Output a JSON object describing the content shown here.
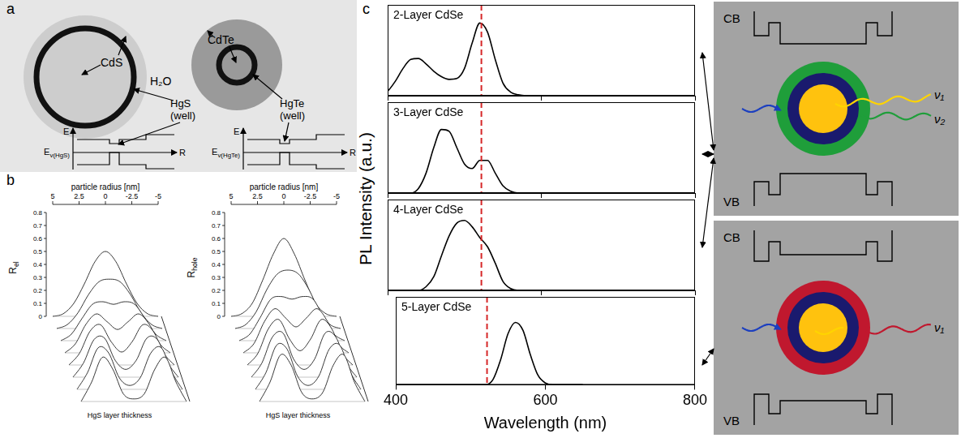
{
  "panel_labels": [
    "a",
    "b",
    "c"
  ],
  "panel_a": {
    "left_shell": "CdS",
    "right_shell": "CdTe",
    "medium": "H₂O",
    "left_well": [
      "HgS",
      "(well)"
    ],
    "right_well": [
      "HgTe",
      "(well)"
    ],
    "energy_axis": "E",
    "radius_axis": "R",
    "left_level": {
      "text": "E",
      "sub": "v(HgS)"
    },
    "right_level": {
      "text": "E",
      "sub": "v(HgTe)"
    }
  },
  "panel_b": {
    "radius_label": "particle radius [nm]",
    "radius_ticks": [
      5,
      2.5,
      0,
      -2.5,
      -5
    ],
    "z_ticks": [
      0,
      0.1,
      0.2,
      0.3,
      0.4,
      0.5,
      0.6,
      0.7,
      0.8
    ],
    "thickness_label": "HgS layer thickness",
    "r": [
      -5,
      -4,
      -3,
      -2,
      -1,
      0,
      1,
      2,
      3,
      4,
      5
    ],
    "plots": [
      {
        "zlabel": {
          "text": "R",
          "sub": "el"
        },
        "curves": [
          [
            0,
            0.02,
            0.1,
            0.25,
            0.42,
            0.5,
            0.42,
            0.25,
            0.1,
            0.02,
            0
          ],
          [
            0,
            0.03,
            0.12,
            0.26,
            0.36,
            0.38,
            0.36,
            0.26,
            0.12,
            0.03,
            0
          ],
          [
            0,
            0.05,
            0.17,
            0.28,
            0.3,
            0.28,
            0.3,
            0.28,
            0.17,
            0.05,
            0
          ],
          [
            0,
            0.07,
            0.22,
            0.3,
            0.24,
            0.18,
            0.24,
            0.3,
            0.22,
            0.07,
            0
          ],
          [
            0,
            0.09,
            0.26,
            0.31,
            0.18,
            0.1,
            0.18,
            0.31,
            0.26,
            0.09,
            0
          ],
          [
            0,
            0.11,
            0.29,
            0.3,
            0.13,
            0.06,
            0.13,
            0.3,
            0.29,
            0.11,
            0
          ],
          [
            0,
            0.13,
            0.32,
            0.28,
            0.09,
            0.03,
            0.09,
            0.28,
            0.32,
            0.13,
            0
          ],
          [
            0,
            0.15,
            0.34,
            0.25,
            0.06,
            0.02,
            0.06,
            0.25,
            0.34,
            0.15,
            0
          ]
        ]
      },
      {
        "zlabel": {
          "text": "R",
          "sub": "hole"
        },
        "curves": [
          [
            0,
            0.02,
            0.1,
            0.28,
            0.48,
            0.6,
            0.48,
            0.28,
            0.1,
            0.02,
            0
          ],
          [
            0,
            0.03,
            0.13,
            0.3,
            0.42,
            0.45,
            0.42,
            0.3,
            0.13,
            0.03,
            0
          ],
          [
            0,
            0.05,
            0.18,
            0.32,
            0.34,
            0.32,
            0.34,
            0.32,
            0.18,
            0.05,
            0
          ],
          [
            0,
            0.07,
            0.24,
            0.34,
            0.27,
            0.2,
            0.27,
            0.34,
            0.24,
            0.07,
            0
          ],
          [
            0,
            0.09,
            0.28,
            0.35,
            0.2,
            0.11,
            0.2,
            0.35,
            0.28,
            0.09,
            0
          ],
          [
            0,
            0.11,
            0.31,
            0.34,
            0.14,
            0.06,
            0.14,
            0.34,
            0.31,
            0.11,
            0
          ],
          [
            0,
            0.13,
            0.34,
            0.31,
            0.1,
            0.03,
            0.1,
            0.31,
            0.34,
            0.13,
            0
          ],
          [
            0,
            0.15,
            0.36,
            0.28,
            0.07,
            0.02,
            0.07,
            0.28,
            0.36,
            0.15,
            0
          ]
        ]
      }
    ]
  },
  "panel_c_ylabel": "PL Intensity (a.u.)",
  "chart_data": [
    {
      "type": "line",
      "title": "2-Layer CdSe",
      "color": "#000000",
      "x": [
        390,
        400,
        410,
        420,
        430,
        440,
        450,
        460,
        470,
        480,
        490,
        500,
        510,
        520,
        530,
        540,
        550,
        560,
        570,
        580,
        590,
        600,
        610,
        620,
        630,
        640,
        650
      ],
      "values": [
        0,
        0.05,
        0.16,
        0.3,
        0.4,
        0.41,
        0.35,
        0.27,
        0.21,
        0.18,
        0.19,
        0.3,
        0.58,
        0.8,
        0.7,
        0.4,
        0.14,
        0.04,
        0.01,
        0,
        0,
        0,
        0,
        0,
        0,
        0,
        0
      ],
      "xlim": [
        400,
        800
      ],
      "xticks": [
        400,
        600,
        800
      ],
      "ylim": [
        0,
        1
      ],
      "grid": false,
      "tick_labels": false,
      "reference_line": {
        "x": 522,
        "color": "#d62728",
        "line_style": "dashed"
      }
    },
    {
      "type": "line",
      "title": "3-Layer CdSe",
      "color": "#000000",
      "x": [
        390,
        400,
        410,
        420,
        430,
        440,
        450,
        460,
        470,
        480,
        490,
        500,
        510,
        520,
        530,
        540,
        550,
        560,
        570,
        580,
        590,
        600,
        610,
        620,
        630,
        640,
        650
      ],
      "values": [
        0,
        0,
        0,
        0,
        0,
        0.05,
        0.22,
        0.5,
        0.7,
        0.68,
        0.5,
        0.32,
        0.27,
        0.36,
        0.36,
        0.22,
        0.08,
        0.02,
        0,
        0,
        0,
        0,
        0,
        0,
        0,
        0,
        0
      ],
      "xlim": [
        400,
        800
      ],
      "xticks": [
        400,
        600,
        800
      ],
      "ylim": [
        0,
        1
      ],
      "grid": false,
      "tick_labels": false,
      "reference_line": {
        "x": 522,
        "color": "#d62728",
        "line_style": "dashed"
      }
    },
    {
      "type": "line",
      "title": "4-Layer CdSe",
      "color": "#000000",
      "x": [
        390,
        400,
        410,
        420,
        430,
        440,
        450,
        460,
        470,
        480,
        490,
        500,
        510,
        520,
        530,
        540,
        550,
        560,
        570,
        580,
        590,
        600,
        610,
        620,
        630,
        640,
        650
      ],
      "values": [
        0,
        0,
        0,
        0,
        0,
        0,
        0.04,
        0.15,
        0.38,
        0.6,
        0.74,
        0.77,
        0.7,
        0.58,
        0.48,
        0.3,
        0.1,
        0.02,
        0,
        0,
        0,
        0,
        0,
        0,
        0,
        0,
        0
      ],
      "xlim": [
        400,
        800
      ],
      "xticks": [
        400,
        600,
        800
      ],
      "ylim": [
        0,
        1
      ],
      "grid": false,
      "tick_labels": false,
      "reference_line": {
        "x": 522,
        "color": "#d62728",
        "line_style": "dashed"
      }
    },
    {
      "type": "line",
      "title": "5-Layer CdSe",
      "color": "#000000",
      "xlabel": "Wavelength (nm)",
      "x": [
        390,
        400,
        410,
        420,
        430,
        440,
        450,
        460,
        470,
        480,
        490,
        500,
        510,
        520,
        530,
        540,
        550,
        560,
        570,
        580,
        590,
        600,
        610,
        620,
        630,
        640,
        650
      ],
      "values": [
        0,
        0,
        0,
        0,
        0,
        0,
        0,
        0,
        0,
        0,
        0,
        0,
        0,
        0,
        0.06,
        0.28,
        0.58,
        0.71,
        0.62,
        0.34,
        0.11,
        0.02,
        0,
        0,
        0,
        0,
        0
      ],
      "xlim": [
        400,
        800
      ],
      "xticks": [
        400,
        600,
        800
      ],
      "ylim": [
        0,
        1
      ],
      "grid": false,
      "tick_labels": "x",
      "reference_line": {
        "x": 522,
        "color": "#d62728",
        "line_style": "dashed"
      }
    }
  ],
  "schematics": [
    {
      "band_labels": [
        "CB",
        "VB"
      ],
      "emissions": [
        "ν₁",
        "ν₂"
      ]
    },
    {
      "band_labels": [
        "CB",
        "VB"
      ],
      "emissions": [
        "ν₁"
      ]
    }
  ]
}
